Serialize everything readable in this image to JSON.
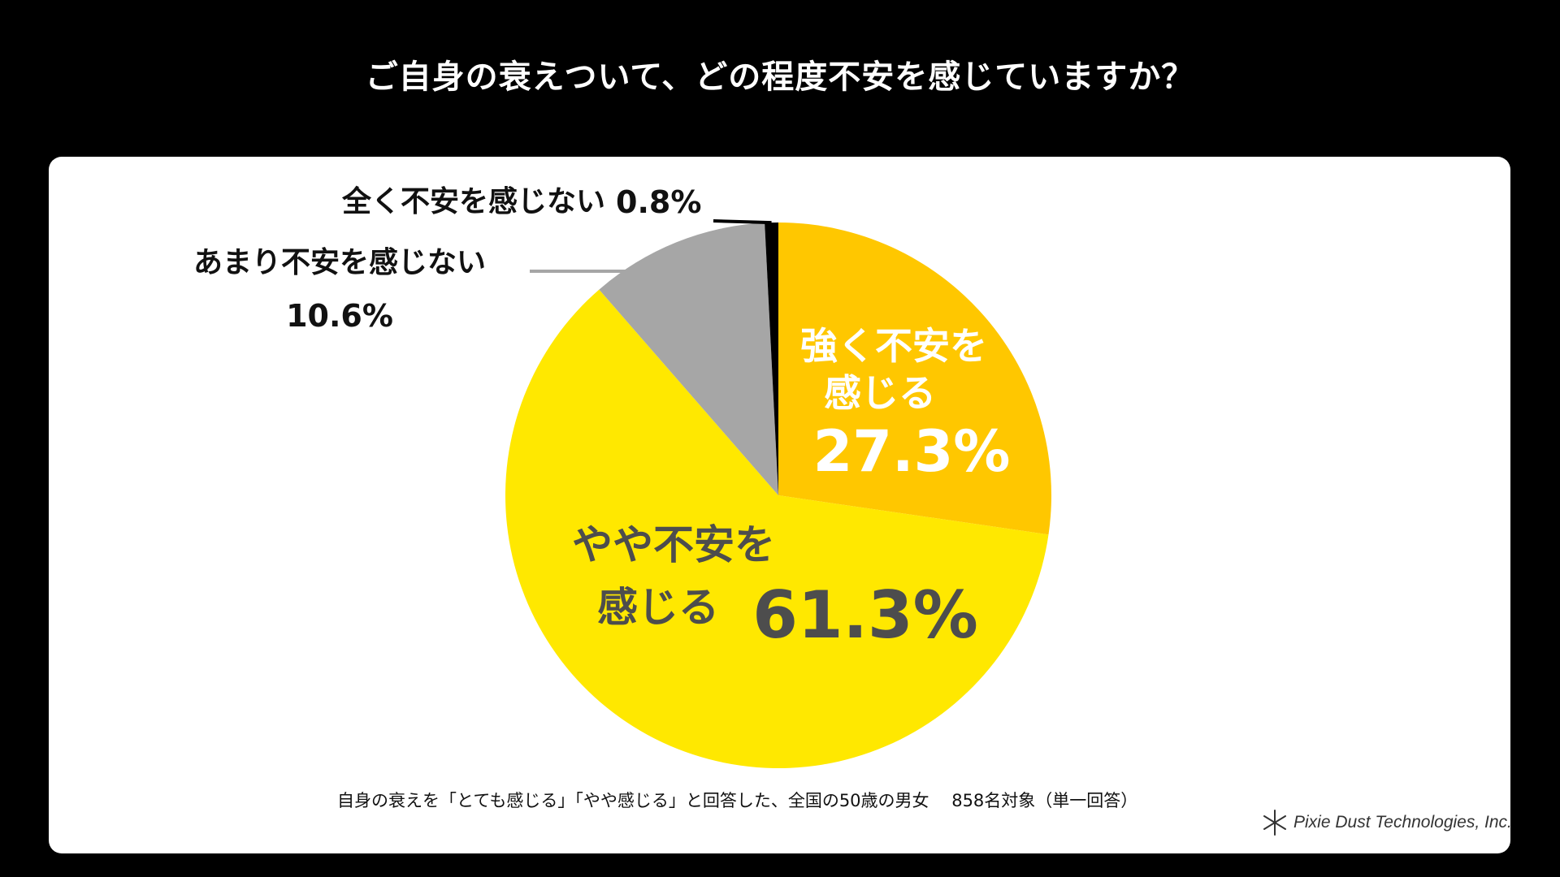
{
  "title": "ご自身の衰えついて、どの程度不安を感じていますか？",
  "colors": {
    "background": "#000000",
    "card": "#ffffff",
    "strong": "#FFC700",
    "somewhat": "#FFE800",
    "not_much": "#A6A6A6",
    "not_at_all": "#000000"
  },
  "chart_data": {
    "type": "pie",
    "start": "12 o'clock",
    "direction": "clockwise",
    "slices": [
      {
        "label_lines": [
          "強く不安を",
          "感じる"
        ],
        "value": 27.3,
        "value_label": "27.3%",
        "color": "#FFC700"
      },
      {
        "label_lines": [
          "やや不安を",
          "感じる"
        ],
        "value": 61.3,
        "value_label": "61.3%",
        "color": "#FFE800"
      },
      {
        "label_lines": [
          "あまり不安を感じない"
        ],
        "value": 10.6,
        "value_label": "10.6%",
        "color": "#A6A6A6"
      },
      {
        "label_lines": [
          "全く不安を感じない"
        ],
        "value": 0.8,
        "value_label": "0.8%",
        "color": "#000000"
      }
    ]
  },
  "footnote": "自身の衰えを「とても感じる」「やや感じる」と回答した、全国の50歳の男女　 858名対象（単一回答）",
  "brand": {
    "name": "Pixie Dust Technologies, Inc.",
    "icon": "asterisk-logo-icon"
  }
}
